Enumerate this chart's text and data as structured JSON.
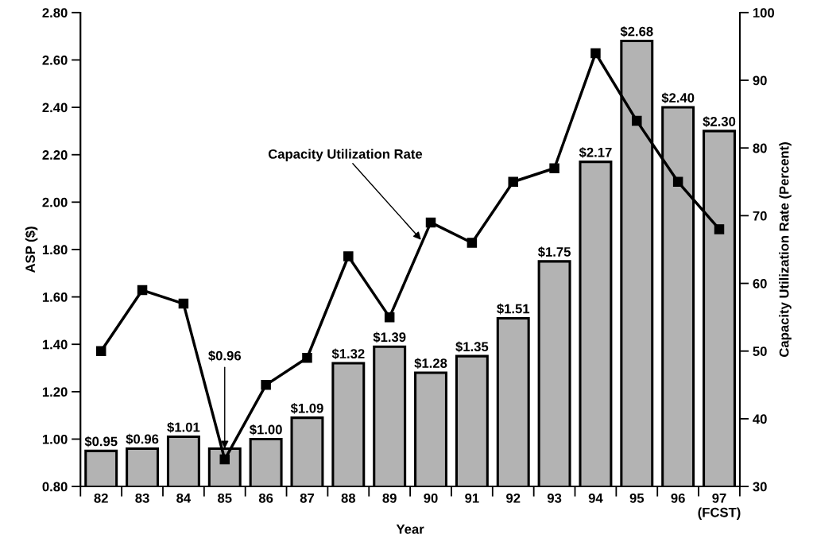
{
  "chart_data": {
    "type": "bar",
    "xlabel": "Year",
    "ylabel": "ASP ($)",
    "y2label": "Capacity Utilization Rate (Percent)",
    "categories": [
      "82",
      "83",
      "84",
      "85",
      "86",
      "87",
      "88",
      "89",
      "90",
      "91",
      "92",
      "93",
      "94",
      "95",
      "96",
      "97\n(FCST)"
    ],
    "series": [
      {
        "color": "#b3b3b3",
        "values": [
          0.95,
          0.96,
          1.01,
          0.96,
          1.0,
          1.09,
          1.32,
          1.39,
          1.28,
          1.35,
          1.51,
          1.75,
          2.17,
          2.68,
          2.4,
          2.3
        ],
        "value_labels": [
          "$0.95",
          "$0.96",
          "$1.01",
          "$0.96",
          "$1.00",
          "$1.09",
          "$1.32",
          "$1.39",
          "$1.28",
          "$1.35",
          "$1.51",
          "$1.75",
          "$2.17",
          "$2.68",
          "$2.40",
          "$2.30"
        ]
      },
      {
        "type": "line",
        "name": "Capacity Utilization Rate",
        "axis": "y2",
        "color": "#000000",
        "marker": "square",
        "line_style": "solid",
        "values": [
          50,
          59,
          57,
          34,
          45,
          49,
          64,
          55,
          69,
          66,
          75,
          77,
          94,
          84,
          75,
          68
        ]
      }
    ],
    "ylim": [
      0.8,
      2.8
    ],
    "yticks": [
      {
        "value": 0.8,
        "label": "0.80"
      },
      {
        "value": 1.0,
        "label": "1.00"
      },
      {
        "value": 1.2,
        "label": "1.20"
      },
      {
        "value": 1.4,
        "label": "1.40"
      },
      {
        "value": 1.6,
        "label": "1.60"
      },
      {
        "value": 1.8,
        "label": "1.80"
      },
      {
        "value": 2.0,
        "label": "2.00"
      },
      {
        "value": 2.2,
        "label": "2.20"
      },
      {
        "value": 2.4,
        "label": "2.40"
      },
      {
        "value": 2.6,
        "label": "2.60"
      },
      {
        "value": 2.8,
        "label": "2.80"
      }
    ],
    "y2lim": [
      30,
      100
    ],
    "y2ticks": [
      30,
      40,
      50,
      60,
      70,
      80,
      90,
      100
    ],
    "grid": false,
    "legend": false
  }
}
